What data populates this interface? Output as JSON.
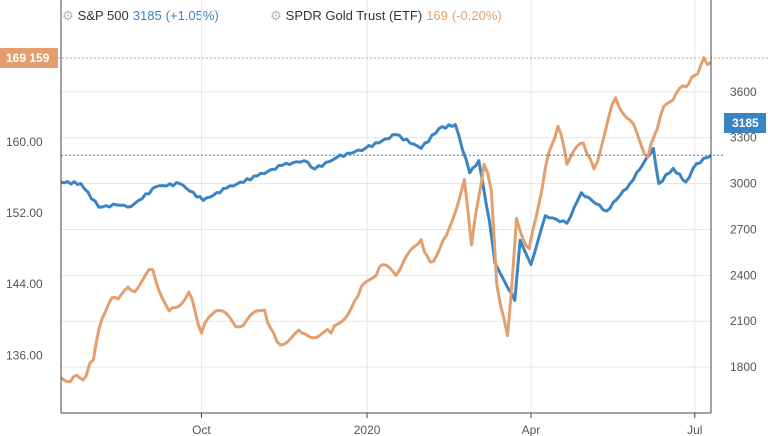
{
  "colors": {
    "spx": "#3a84c2",
    "gld": "#e3a06e",
    "grid": "#e6e6e6",
    "axis": "#444444"
  },
  "legend": [
    {
      "icon": "gear-icon",
      "name": "S&P 500",
      "value": "3185",
      "change": "(+1.05%)",
      "color": "#3a84c2"
    },
    {
      "icon": "gear-icon",
      "name": "SPDR Gold Trust (ETF)",
      "value": "169",
      "change": "(-0.20%)",
      "color": "#e3a06e"
    }
  ],
  "badges": {
    "left": {
      "text": "169 159",
      "color": "#e3a06e"
    },
    "right": {
      "text": "3185",
      "color": "#3a84c2"
    }
  },
  "chart_data": {
    "type": "line",
    "x_ticks": [
      "Oct",
      "2020",
      "Apr",
      "Jul"
    ],
    "x_range": [
      "2019-07-15",
      "2020-07-10"
    ],
    "left_axis": {
      "series": "SPDR Gold Trust (ETF)",
      "ticks": [
        "160.00",
        "152.00",
        "144.00",
        "136.00"
      ],
      "range": [
        129.5,
        176
      ]
    },
    "right_axis": {
      "series": "S&P 500",
      "ticks": [
        "3600",
        "3300",
        "3000",
        "2700",
        "2400",
        "2100",
        "1800"
      ],
      "range": [
        1500,
        4200
      ]
    },
    "series": [
      {
        "name": "S&P 500",
        "axis": "right",
        "color": "#3a84c2",
        "points": [
          [
            "2019-07-15",
            3010
          ],
          [
            "2019-07-26",
            3000
          ],
          [
            "2019-08-05",
            2845
          ],
          [
            "2019-08-15",
            2860
          ],
          [
            "2019-08-23",
            2850
          ],
          [
            "2019-09-06",
            2980
          ],
          [
            "2019-09-19",
            3000
          ],
          [
            "2019-10-02",
            2890
          ],
          [
            "2019-10-15",
            2970
          ],
          [
            "2019-11-01",
            3050
          ],
          [
            "2019-11-15",
            3120
          ],
          [
            "2019-11-27",
            3150
          ],
          [
            "2019-12-03",
            3095
          ],
          [
            "2019-12-15",
            3170
          ],
          [
            "2019-12-31",
            3230
          ],
          [
            "2020-01-17",
            3320
          ],
          [
            "2020-01-31",
            3230
          ],
          [
            "2020-02-10",
            3360
          ],
          [
            "2020-02-19",
            3386
          ],
          [
            "2020-02-27",
            3070
          ],
          [
            "2020-03-03",
            3150
          ],
          [
            "2020-03-09",
            2750
          ],
          [
            "2020-03-12",
            2480
          ],
          [
            "2020-03-16",
            2390
          ],
          [
            "2020-03-23",
            2237
          ],
          [
            "2020-03-26",
            2630
          ],
          [
            "2020-04-01",
            2470
          ],
          [
            "2020-04-09",
            2790
          ],
          [
            "2020-04-21",
            2740
          ],
          [
            "2020-04-29",
            2940
          ],
          [
            "2020-05-13",
            2820
          ],
          [
            "2020-05-26",
            3000
          ],
          [
            "2020-06-08",
            3230
          ],
          [
            "2020-06-11",
            3000
          ],
          [
            "2020-06-19",
            3100
          ],
          [
            "2020-06-26",
            3010
          ],
          [
            "2020-07-02",
            3130
          ],
          [
            "2020-07-08",
            3170
          ],
          [
            "2020-07-10",
            3185
          ]
        ]
      },
      {
        "name": "SPDR Gold Trust (ETF)",
        "axis": "left",
        "color": "#e3a06e",
        "points": [
          [
            "2019-07-15",
            133.5
          ],
          [
            "2019-07-22",
            133.6
          ],
          [
            "2019-07-29",
            133.7
          ],
          [
            "2019-08-02",
            135.5
          ],
          [
            "2019-08-07",
            140.2
          ],
          [
            "2019-08-14",
            142.5
          ],
          [
            "2019-08-23",
            143.3
          ],
          [
            "2019-09-04",
            145.6
          ],
          [
            "2019-09-13",
            141.0
          ],
          [
            "2019-09-24",
            143.1
          ],
          [
            "2019-10-01",
            138.5
          ],
          [
            "2019-10-09",
            141.0
          ],
          [
            "2019-10-22",
            139.2
          ],
          [
            "2019-11-05",
            141.1
          ],
          [
            "2019-11-12",
            137.5
          ],
          [
            "2019-11-26",
            138.5
          ],
          [
            "2019-12-12",
            138.5
          ],
          [
            "2019-12-27",
            142.7
          ],
          [
            "2020-01-08",
            146.0
          ],
          [
            "2020-01-17",
            145.0
          ],
          [
            "2020-01-31",
            149.0
          ],
          [
            "2020-02-05",
            146.5
          ],
          [
            "2020-02-14",
            149.5
          ],
          [
            "2020-02-24",
            155.8
          ],
          [
            "2020-02-28",
            148.4
          ],
          [
            "2020-03-06",
            157.5
          ],
          [
            "2020-03-10",
            154.5
          ],
          [
            "2020-03-13",
            144.0
          ],
          [
            "2020-03-19",
            138.2
          ],
          [
            "2020-03-24",
            151.4
          ],
          [
            "2020-03-31",
            148.0
          ],
          [
            "2020-04-09",
            157.1
          ],
          [
            "2020-04-16",
            161.8
          ],
          [
            "2020-04-21",
            157.5
          ],
          [
            "2020-04-30",
            159.9
          ],
          [
            "2020-05-06",
            157.0
          ],
          [
            "2020-05-18",
            165.0
          ],
          [
            "2020-05-28",
            162.0
          ],
          [
            "2020-06-05",
            158.3
          ],
          [
            "2020-06-12",
            163.0
          ],
          [
            "2020-06-19",
            164.8
          ],
          [
            "2020-06-26",
            166.2
          ],
          [
            "2020-07-01",
            167.5
          ],
          [
            "2020-07-06",
            169.5
          ],
          [
            "2020-07-10",
            169.0
          ]
        ]
      }
    ]
  }
}
